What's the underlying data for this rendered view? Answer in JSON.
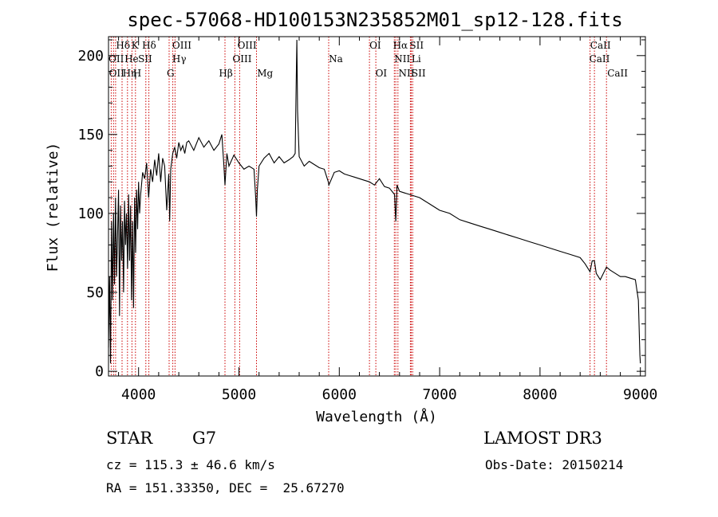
{
  "chart_data": {
    "type": "line",
    "title": "spec-57068-HD100153N235852M01_sp12-128.fits",
    "xlabel": "Wavelength (Å)",
    "ylabel": "Flux (relative)",
    "xlim": [
      3700,
      9050
    ],
    "ylim": [
      -3,
      212
    ],
    "xticks": [
      4000,
      5000,
      6000,
      7000,
      8000,
      9000
    ],
    "yticks": [
      0,
      50,
      100,
      150,
      200
    ],
    "series": [
      {
        "name": "flux",
        "x": [
          3700,
          3710,
          3720,
          3730,
          3740,
          3750,
          3760,
          3770,
          3780,
          3790,
          3800,
          3810,
          3820,
          3830,
          3840,
          3850,
          3860,
          3870,
          3880,
          3890,
          3900,
          3910,
          3920,
          3930,
          3940,
          3950,
          3960,
          3970,
          3980,
          3990,
          4000,
          4010,
          4020,
          4040,
          4060,
          4080,
          4100,
          4120,
          4140,
          4160,
          4180,
          4200,
          4220,
          4240,
          4260,
          4280,
          4300,
          4310,
          4320,
          4340,
          4360,
          4380,
          4400,
          4420,
          4440,
          4460,
          4480,
          4500,
          4550,
          4600,
          4650,
          4700,
          4750,
          4800,
          4830,
          4850,
          4861,
          4880,
          4900,
          4950,
          5000,
          5050,
          5100,
          5150,
          5167,
          5175,
          5183,
          5200,
          5250,
          5300,
          5350,
          5400,
          5450,
          5500,
          5540,
          5560,
          5570,
          5577,
          5584,
          5600,
          5650,
          5700,
          5750,
          5800,
          5850,
          5890,
          5896,
          5950,
          6000,
          6050,
          6100,
          6150,
          6200,
          6250,
          6300,
          6350,
          6400,
          6450,
          6500,
          6550,
          6563,
          6575,
          6600,
          6650,
          6700,
          6750,
          6800,
          6850,
          6900,
          6950,
          7000,
          7100,
          7200,
          7300,
          7400,
          7500,
          7600,
          7700,
          7800,
          7900,
          8000,
          8100,
          8200,
          8300,
          8400,
          8450,
          8498,
          8520,
          8542,
          8560,
          8600,
          8662,
          8700,
          8750,
          8800,
          8850,
          8900,
          8950,
          8980,
          8995,
          9000
        ],
        "values": [
          15,
          60,
          5,
          95,
          45,
          100,
          55,
          110,
          60,
          85,
          115,
          35,
          105,
          70,
          95,
          50,
          108,
          80,
          100,
          65,
          112,
          70,
          105,
          45,
          95,
          40,
          110,
          75,
          115,
          90,
          120,
          100,
          112,
          126,
          122,
          132,
          110,
          128,
          120,
          134,
          124,
          138,
          120,
          135,
          130,
          102,
          125,
          95,
          128,
          138,
          142,
          135,
          145,
          140,
          143,
          138,
          145,
          146,
          140,
          148,
          142,
          146,
          140,
          144,
          150,
          130,
          118,
          138,
          130,
          137,
          132,
          128,
          130,
          128,
          110,
          98,
          115,
          130,
          135,
          138,
          132,
          136,
          132,
          134,
          136,
          138,
          180,
          210,
          165,
          136,
          130,
          133,
          131,
          129,
          128,
          120,
          118,
          126,
          127,
          125,
          124,
          123,
          122,
          121,
          120,
          118,
          122,
          117,
          116,
          112,
          95,
          118,
          114,
          113,
          112,
          111,
          110,
          108,
          106,
          104,
          102,
          100,
          96,
          94,
          92,
          90,
          88,
          86,
          84,
          82,
          80,
          78,
          76,
          74,
          72,
          68,
          63,
          70,
          70,
          62,
          58,
          66,
          64,
          62,
          60,
          60,
          59,
          58,
          45,
          10,
          5
        ]
      }
    ],
    "lines": [
      {
        "wl": 3727,
        "label": "OII"
      },
      {
        "wl": 3750,
        "label": "OII"
      },
      {
        "wl": 3771,
        "label": "OII"
      },
      {
        "wl": 3835,
        "label": "Hη"
      },
      {
        "wl": 3889,
        "label": "He"
      },
      {
        "wl": 3934,
        "label": "K"
      },
      {
        "wl": 3969,
        "label": "H"
      },
      {
        "wl": 4072,
        "label": "SII"
      },
      {
        "wl": 4102,
        "label": "Hδ"
      },
      {
        "wl": 4304,
        "label": "G"
      },
      {
        "wl": 4341,
        "label": "Hγ"
      },
      {
        "wl": 4363,
        "label": "OIII"
      },
      {
        "wl": 4861,
        "label": "Hβ"
      },
      {
        "wl": 4959,
        "label": "OIII"
      },
      {
        "wl": 5007,
        "label": "OIII"
      },
      {
        "wl": 5175,
        "label": "Mg"
      },
      {
        "wl": 5894,
        "label": "Na"
      },
      {
        "wl": 6300,
        "label": "OI"
      },
      {
        "wl": 6364,
        "label": "OI"
      },
      {
        "wl": 6548,
        "label": "NII"
      },
      {
        "wl": 6563,
        "label": "Hα"
      },
      {
        "wl": 6584,
        "label": "NII"
      },
      {
        "wl": 6708,
        "label": "Li"
      },
      {
        "wl": 6717,
        "label": "SII"
      },
      {
        "wl": 6731,
        "label": "SII"
      },
      {
        "wl": 8498,
        "label": "CaII"
      },
      {
        "wl": 8542,
        "label": "CaII"
      },
      {
        "wl": 8662,
        "label": "CaII"
      }
    ],
    "line_labels": [
      {
        "text": "Hδ",
        "row": 1,
        "wl": 3775
      },
      {
        "text": "K",
        "row": 1,
        "wl": 3928
      },
      {
        "text": "Hδ",
        "row": 1,
        "wl": 4035
      },
      {
        "text": "OIII",
        "row": 1,
        "wl": 4335
      },
      {
        "text": "OIII",
        "row": 1,
        "wl": 4985
      },
      {
        "text": "OI",
        "row": 1,
        "wl": 6300
      },
      {
        "text": "Hα",
        "row": 1,
        "wl": 6535
      },
      {
        "text": "SII",
        "row": 1,
        "wl": 6700
      },
      {
        "text": "CaII",
        "row": 1,
        "wl": 8500
      },
      {
        "text": "OII",
        "row": 2,
        "wl": 3700
      },
      {
        "text": "He",
        "row": 2,
        "wl": 3860
      },
      {
        "text": "SII",
        "row": 2,
        "wl": 3995
      },
      {
        "text": "Hγ",
        "row": 2,
        "wl": 4335
      },
      {
        "text": "OIII",
        "row": 2,
        "wl": 4935
      },
      {
        "text": "Na",
        "row": 2,
        "wl": 5895
      },
      {
        "text": "NII",
        "row": 2,
        "wl": 6548
      },
      {
        "text": "Li",
        "row": 2,
        "wl": 6720
      },
      {
        "text": "CaII",
        "row": 2,
        "wl": 8490
      },
      {
        "text": "OII",
        "row": 3,
        "wl": 3705
      },
      {
        "text": "Hη",
        "row": 3,
        "wl": 3840
      },
      {
        "text": "H",
        "row": 3,
        "wl": 3945
      },
      {
        "text": "G",
        "row": 3,
        "wl": 4280
      },
      {
        "text": "Hβ",
        "row": 3,
        "wl": 4800
      },
      {
        "text": "Mg",
        "row": 3,
        "wl": 5180
      },
      {
        "text": "OI",
        "row": 3,
        "wl": 6360
      },
      {
        "text": "NII",
        "row": 3,
        "wl": 6590
      },
      {
        "text": "SII",
        "row": 3,
        "wl": 6720
      },
      {
        "text": "CaII",
        "row": 3,
        "wl": 8670
      }
    ],
    "line_color": "#cc0000",
    "grid": false,
    "legend": "none"
  },
  "info": {
    "object_class": "STAR",
    "subclass": "G7",
    "survey": "LAMOST DR3",
    "redshift": "cz = 115.3 ± 46.6 km/s",
    "obs_date": "Obs-Date: 20150214",
    "coords": "RA = 151.33350, DEC =  25.67270"
  }
}
